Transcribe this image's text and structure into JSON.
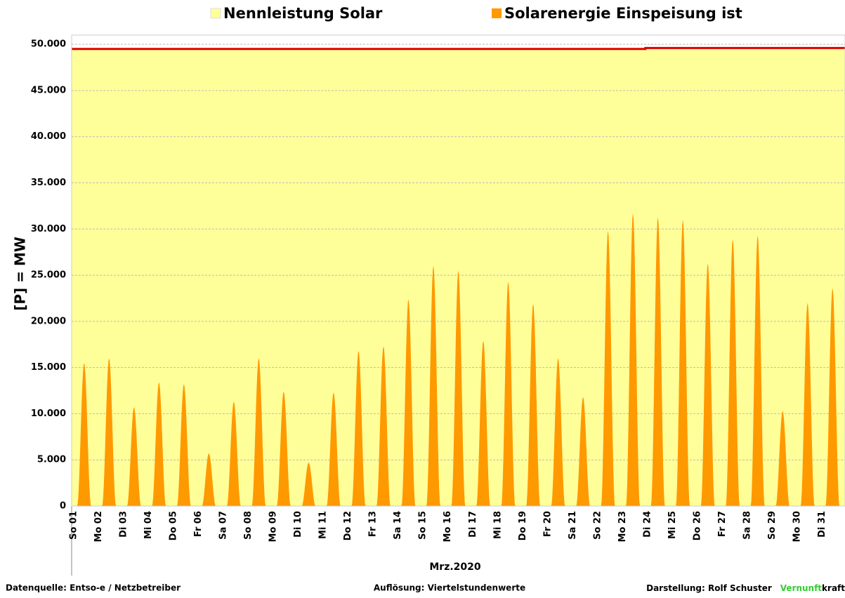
{
  "chart_data": {
    "type": "area",
    "title_series_note": null,
    "categories": [
      "So 01",
      "Mo 02",
      "Di 03",
      "Mi 04",
      "Do 05",
      "Fr 06",
      "Sa 07",
      "So 08",
      "Mo 09",
      "Di 10",
      "Mi 11",
      "Do 12",
      "Fr 13",
      "Sa 14",
      "So 15",
      "Mo 16",
      "Di 17",
      "Mi 18",
      "Do 19",
      "Fr 20",
      "Sa 21",
      "So 22",
      "Mo 23",
      "Di 24",
      "Mi 25",
      "Do 26",
      "Fr 27",
      "Sa 28",
      "So 29",
      "Mo 30",
      "Di 31"
    ],
    "series": [
      {
        "name": "Solarenergie Einspeisung ist",
        "color": "#ff9900",
        "values": [
          15500,
          16000,
          10700,
          13400,
          13200,
          5700,
          11300,
          16000,
          12400,
          4700,
          12300,
          16800,
          17300,
          22400,
          26000,
          25500,
          17900,
          24300,
          21900,
          16000,
          11800,
          29800,
          31700,
          31300,
          31000,
          26300,
          28900,
          29300,
          10300,
          22000,
          23600
        ]
      },
      {
        "name": "Nennleistung Solar",
        "color": "#ffff99",
        "line_color": "#e00000",
        "values": [
          49500,
          49500,
          49500,
          49500,
          49500,
          49500,
          49500,
          49500,
          49500,
          49500,
          49500,
          49500,
          49500,
          49500,
          49500,
          49500,
          49500,
          49500,
          49500,
          49500,
          49500,
          49500,
          49500,
          49600,
          49600,
          49600,
          49600,
          49600,
          49600,
          49600,
          49600
        ]
      }
    ],
    "x_label": "Mrz.2020",
    "y_label": "[P]  =  MW",
    "ylim": [
      0,
      51000
    ],
    "yticks": [
      0,
      {
        "value": 5000,
        "label": "5.000"
      },
      {
        "value": 10000,
        "label": "10.000"
      },
      {
        "value": 15000,
        "label": "15.000"
      },
      {
        "value": 20000,
        "label": "20.000"
      },
      {
        "value": 25000,
        "label": "25.000"
      },
      {
        "value": 30000,
        "label": "30.000"
      },
      {
        "value": 35000,
        "label": "35.000"
      },
      {
        "value": 40000,
        "label": "40.000"
      },
      {
        "value": 45000,
        "label": "45.000"
      },
      {
        "value": 50000,
        "label": "50.000"
      }
    ],
    "grid": true,
    "footer": {
      "source": "Datenquelle:  Entso-e  / Netzbetreiber",
      "resolution": "Auflösung: Viertelstundenwerte",
      "author": "Darstellung:  Rolf Schuster",
      "brand_green": "Vernunft",
      "brand_black": "kraft"
    }
  }
}
